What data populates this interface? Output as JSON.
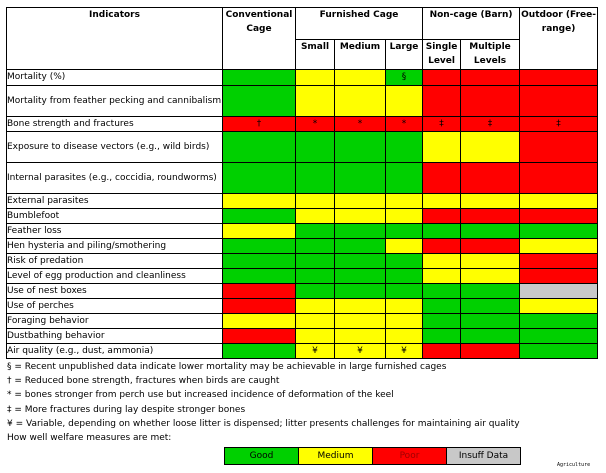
{
  "headers": {
    "indicators": "Indicators",
    "conventional": "Conventional Cage",
    "furnished": "Furnished Cage",
    "noncage": "Non-cage (Barn)",
    "outdoor": "Outdoor (Free-range)",
    "small": "Small",
    "medium": "Medium",
    "large": "Large",
    "single": "Single Level",
    "multiple": "Multiple Levels"
  },
  "colors": {
    "G": "#00d000",
    "Y": "#ffff00",
    "R": "#ff0000",
    "X": "#c8c8c8"
  },
  "rows": [
    {
      "label": "Mortality (%)",
      "cells": [
        "G",
        "Y",
        "Y",
        "G",
        "R",
        "R",
        "R"
      ],
      "marks": [
        "",
        "",
        "",
        "§",
        "",
        "",
        ""
      ]
    },
    {
      "label": "Mortality from feather pecking and cannibalism",
      "cells": [
        "G",
        "Y",
        "Y",
        "Y",
        "R",
        "R",
        "R"
      ],
      "marks": [
        "",
        "",
        "",
        "",
        "",
        "",
        ""
      ]
    },
    {
      "label": "Bone strength and fractures",
      "cells": [
        "R",
        "R",
        "R",
        "R",
        "R",
        "R",
        "R"
      ],
      "marks": [
        "†",
        "*",
        "*",
        "*",
        "‡",
        "‡",
        "‡"
      ]
    },
    {
      "label": "Exposure to disease vectors (e.g., wild birds)",
      "cells": [
        "G",
        "G",
        "G",
        "G",
        "Y",
        "Y",
        "R"
      ],
      "marks": [
        "",
        "",
        "",
        "",
        "",
        "",
        ""
      ]
    },
    {
      "label": "Internal parasites (e.g., coccidia, roundworms)",
      "cells": [
        "G",
        "G",
        "G",
        "G",
        "R",
        "R",
        "R"
      ],
      "marks": [
        "",
        "",
        "",
        "",
        "",
        "",
        ""
      ]
    },
    {
      "label": "External parasites",
      "cells": [
        "Y",
        "Y",
        "Y",
        "Y",
        "Y",
        "Y",
        "Y"
      ],
      "marks": [
        "",
        "",
        "",
        "",
        "",
        "",
        ""
      ]
    },
    {
      "label": "Bumblefoot",
      "cells": [
        "G",
        "Y",
        "Y",
        "Y",
        "R",
        "R",
        "R"
      ],
      "marks": [
        "",
        "",
        "",
        "",
        "",
        "",
        ""
      ]
    },
    {
      "label": "Feather loss",
      "cells": [
        "Y",
        "G",
        "G",
        "G",
        "G",
        "G",
        "G"
      ],
      "marks": [
        "",
        "",
        "",
        "",
        "",
        "",
        ""
      ]
    },
    {
      "label": "Hen hysteria and piling/smothering",
      "cells": [
        "G",
        "G",
        "G",
        "Y",
        "R",
        "R",
        "Y"
      ],
      "marks": [
        "",
        "",
        "",
        "",
        "",
        "",
        ""
      ]
    },
    {
      "label": "Risk of predation",
      "cells": [
        "G",
        "G",
        "G",
        "G",
        "Y",
        "Y",
        "R"
      ],
      "marks": [
        "",
        "",
        "",
        "",
        "",
        "",
        ""
      ]
    },
    {
      "label": "Level of egg production and cleanliness",
      "cells": [
        "G",
        "G",
        "G",
        "G",
        "Y",
        "Y",
        "R"
      ],
      "marks": [
        "",
        "",
        "",
        "",
        "",
        "",
        ""
      ]
    },
    {
      "label": "Use of nest boxes",
      "cells": [
        "R",
        "G",
        "G",
        "G",
        "G",
        "G",
        "X"
      ],
      "marks": [
        "",
        "",
        "",
        "",
        "",
        "",
        ""
      ]
    },
    {
      "label": "Use of perches",
      "cells": [
        "R",
        "Y",
        "Y",
        "Y",
        "G",
        "G",
        "Y"
      ],
      "marks": [
        "",
        "",
        "",
        "",
        "",
        "",
        ""
      ]
    },
    {
      "label": "Foraging behavior",
      "cells": [
        "Y",
        "Y",
        "Y",
        "Y",
        "G",
        "G",
        "G"
      ],
      "marks": [
        "",
        "",
        "",
        "",
        "",
        "",
        ""
      ]
    },
    {
      "label": "Dustbathing behavior",
      "cells": [
        "R",
        "Y",
        "Y",
        "Y",
        "G",
        "G",
        "G"
      ],
      "marks": [
        "",
        "",
        "",
        "",
        "",
        "",
        ""
      ]
    },
    {
      "label": "Air quality (e.g., dust, ammonia)",
      "cells": [
        "G",
        "Y",
        "Y",
        "Y",
        "R",
        "R",
        "G"
      ],
      "marks": [
        "",
        "¥",
        "¥",
        "¥",
        "",
        "",
        ""
      ]
    }
  ],
  "notes": [
    "§ = Recent unpublished data indicate lower mortality may be achievable in large furnished cages",
    "† = Reduced bone strength, fractures when birds are caught",
    "* = bones stronger from perch use but increased incidence of deformation of the keel",
    "‡ = More fractures during lay despite stronger bones",
    "¥ = Variable, depending on whether loose litter is dispensed; litter presents challenges for maintaining air quality",
    "How well welfare measures are met:"
  ],
  "legend": {
    "good": "Good",
    "medium": "Medium",
    "poor": "Poor",
    "insuff": "Insuff Data"
  },
  "credit": "Agriculture"
}
